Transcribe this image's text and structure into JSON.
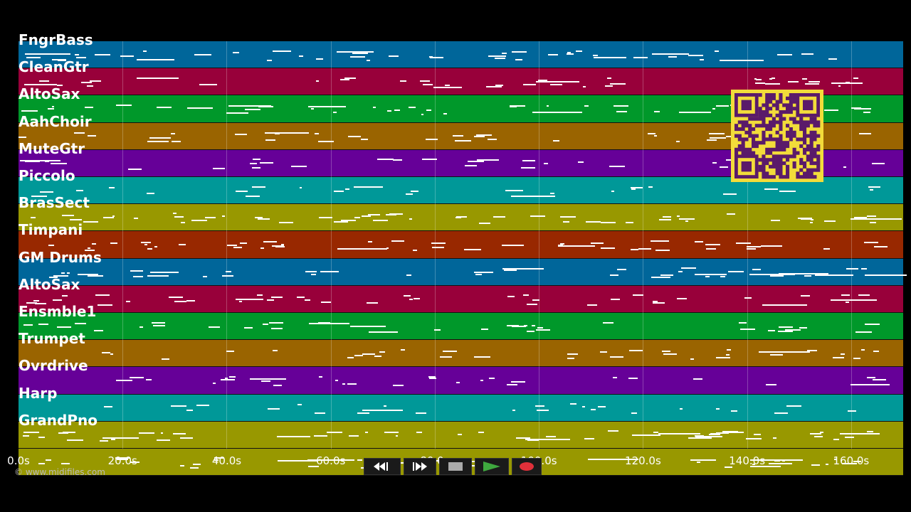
{
  "copyright": "© www.midifiles.com",
  "tracks": [
    {
      "name": "FngrBass",
      "color": "#00669a"
    },
    {
      "name": "CleanGtr",
      "color": "#98003a"
    },
    {
      "name": "AltoSax",
      "color": "#00982a"
    },
    {
      "name": "AahChoir",
      "color": "#9a6400"
    },
    {
      "name": "MuteGtr",
      "color": "#660098"
    },
    {
      "name": "Piccolo",
      "color": "#009898"
    },
    {
      "name": "BrasSect",
      "color": "#989800"
    },
    {
      "name": "Timpani",
      "color": "#982800"
    },
    {
      "name": "GM Drums",
      "color": "#00669a"
    },
    {
      "name": "AltoSax",
      "color": "#98003a"
    },
    {
      "name": "Ensmble1",
      "color": "#00982a"
    },
    {
      "name": "Trumpet",
      "color": "#9a6400"
    },
    {
      "name": "Ovrdrive",
      "color": "#660098"
    },
    {
      "name": "Harp",
      "color": "#009898"
    },
    {
      "name": "GrandPno",
      "color": "#989800"
    },
    {
      "name": "",
      "color": "#989800"
    }
  ],
  "time_axis": {
    "min_seconds": 0,
    "max_seconds": 170,
    "ticks": [
      {
        "value": 0,
        "label": "0.0s"
      },
      {
        "value": 20,
        "label": "20.0s"
      },
      {
        "value": 40,
        "label": "40.0s"
      },
      {
        "value": 60,
        "label": "60.0s"
      },
      {
        "value": 80,
        "label": "80.0s"
      },
      {
        "value": 100,
        "label": "100.0s"
      },
      {
        "value": 120,
        "label": "120.0s"
      },
      {
        "value": 140,
        "label": "140.0s"
      },
      {
        "value": 160,
        "label": "160.0s"
      }
    ]
  },
  "transport": {
    "rewind_icon": "rewind-icon",
    "fast_forward_icon": "fast-forward-icon",
    "stop_icon": "stop-icon",
    "play_icon": "play-icon",
    "record_icon": "record-icon",
    "play_color": "#3fa83f",
    "record_color": "#e0303a"
  },
  "qr_code": {
    "icon": "qr-code-icon",
    "background": "#f2dc3a",
    "foreground": "#5a1a6a"
  }
}
